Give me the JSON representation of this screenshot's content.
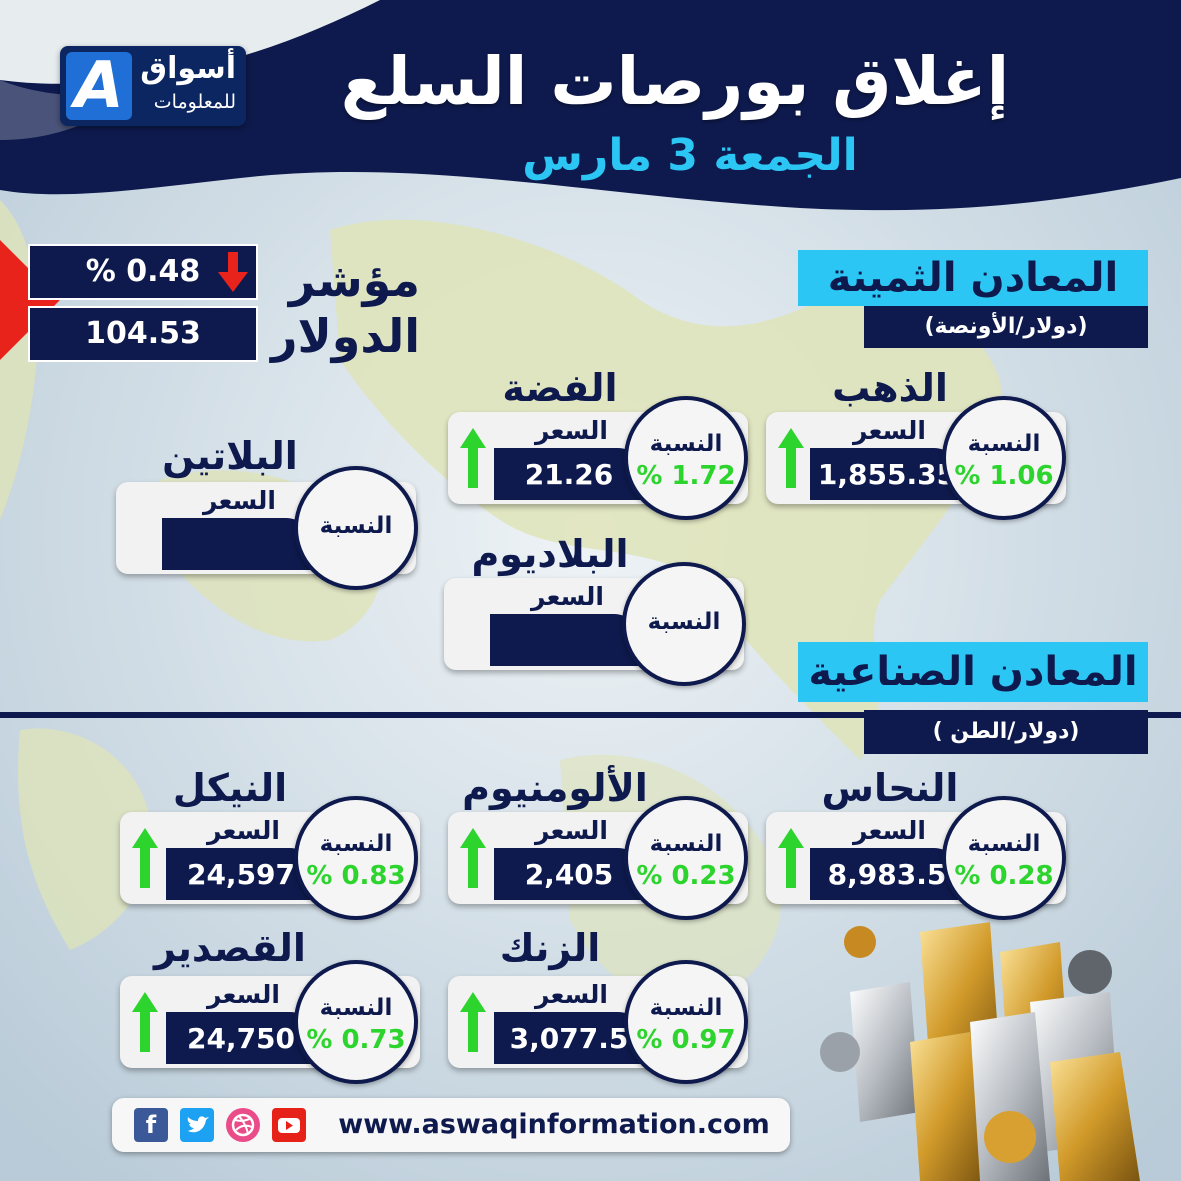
{
  "header": {
    "title": "إغلاق بورصات السلع",
    "date": "الجمعة 3 مارس"
  },
  "logo": {
    "letter": "A",
    "line1": "أسواق",
    "line2": "للمعلومات"
  },
  "dollar_index": {
    "label_line1": "مؤشر",
    "label_line2": "الدولار",
    "change": "0.48 %",
    "value": "104.53",
    "direction": "down"
  },
  "precious": {
    "title": "المعادن الثمينة",
    "unit": "(دولار/الأونصة)",
    "items": [
      {
        "name": "الذهب",
        "price_label": "السعر",
        "pct_label": "النسبة",
        "price": "1,855.35",
        "pct": "1.06 %",
        "direction": "up"
      },
      {
        "name": "الفضة",
        "price_label": "السعر",
        "pct_label": "النسبة",
        "price": "21.26",
        "pct": "1.72 %",
        "direction": "up"
      },
      {
        "name": "البلاتين",
        "price_label": "السعر",
        "pct_label": "النسبة",
        "price": "",
        "pct": "",
        "direction": ""
      },
      {
        "name": "البلاديوم",
        "price_label": "السعر",
        "pct_label": "النسبة",
        "price": "",
        "pct": "",
        "direction": ""
      }
    ]
  },
  "industrial": {
    "title": "المعادن الصناعية",
    "unit": "(دولار/الطن )",
    "items": [
      {
        "name": "النحاس",
        "price_label": "السعر",
        "pct_label": "النسبة",
        "price": "8,983.5",
        "pct": "0.28 %",
        "direction": "up"
      },
      {
        "name": "الألومنيوم",
        "price_label": "السعر",
        "pct_label": "النسبة",
        "price": "2,405",
        "pct": "0.23 %",
        "direction": "up"
      },
      {
        "name": "النيكل",
        "price_label": "السعر",
        "pct_label": "النسبة",
        "price": "24,597",
        "pct": "0.83 %",
        "direction": "up"
      },
      {
        "name": "الزنك",
        "price_label": "السعر",
        "pct_label": "النسبة",
        "price": "3,077.5",
        "pct": "0.97 %",
        "direction": "up"
      },
      {
        "name": "القصدير",
        "price_label": "السعر",
        "pct_label": "النسبة",
        "price": "24,750",
        "pct": "0.73 %",
        "direction": "up"
      }
    ]
  },
  "footer": {
    "url": "www.aswaqinformation.com",
    "icons": [
      "facebook-icon",
      "twitter-icon",
      "dribbble-icon",
      "youtube-icon"
    ]
  },
  "colors": {
    "navy": "#0e1a4d",
    "cyan": "#2bc6f4",
    "up_green": "#2ed42e",
    "down_red": "#e8231c"
  }
}
